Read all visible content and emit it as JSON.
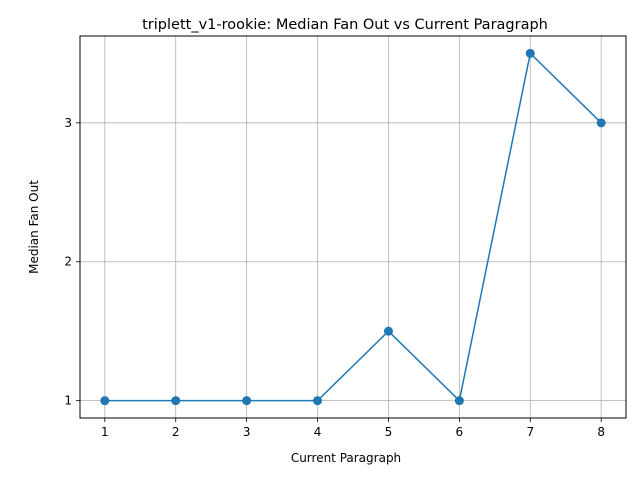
{
  "chart_data": {
    "type": "line",
    "title": "triplett_v1-rookie: Median Fan Out vs Current Paragraph",
    "xlabel": "Current Paragraph",
    "ylabel": "Median Fan Out",
    "x": [
      1,
      2,
      3,
      4,
      5,
      6,
      7,
      8
    ],
    "series": [
      {
        "values": [
          1,
          1,
          1,
          1,
          1.5,
          1,
          3.5,
          3
        ]
      }
    ],
    "xticks": [
      "1",
      "2",
      "3",
      "4",
      "5",
      "6",
      "7",
      "8"
    ],
    "yticks": [
      "1",
      "2",
      "3"
    ],
    "xlim": [
      0.65,
      8.35
    ],
    "ylim": [
      0.875,
      3.625
    ],
    "grid": true,
    "colors": {
      "line": "#1f77b4",
      "grid": "#b0b0b0",
      "axis": "#000000"
    }
  }
}
